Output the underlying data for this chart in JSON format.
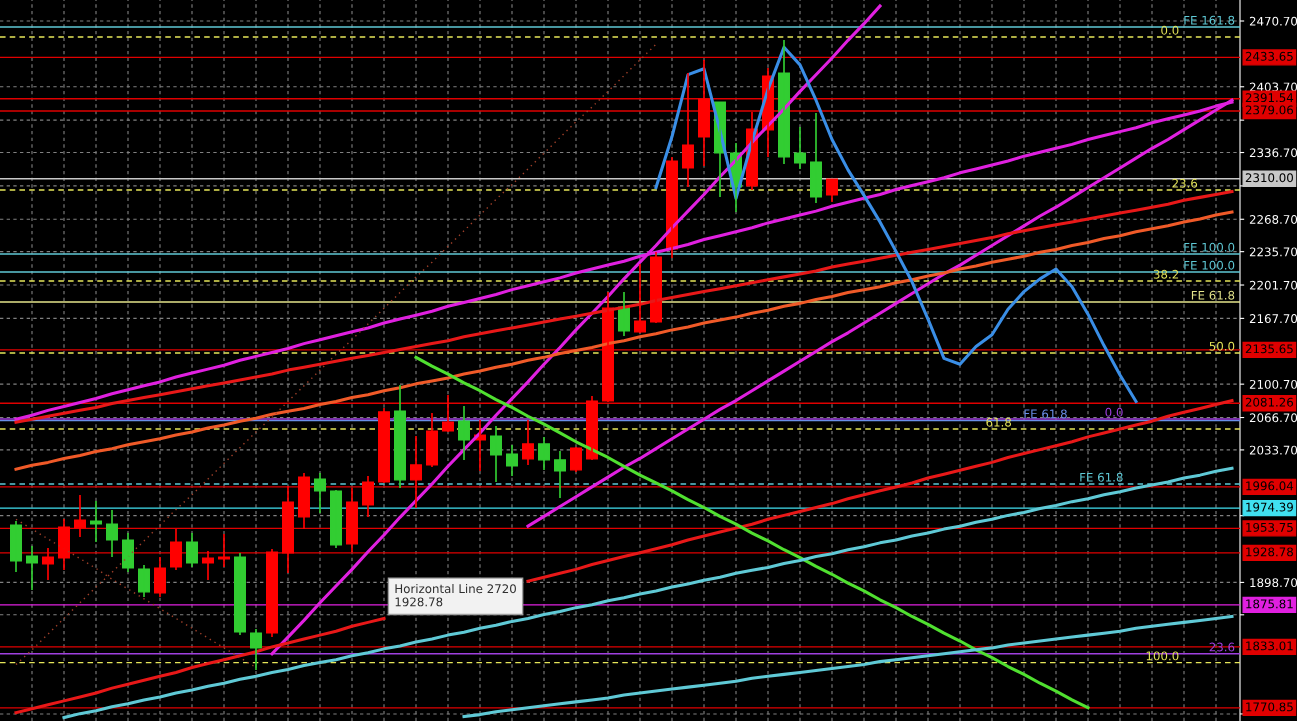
{
  "chart_data": {
    "type": "candlestick",
    "categories": [
      null,
      null,
      null,
      null,
      null,
      null,
      null,
      null,
      null,
      null,
      null,
      null,
      null,
      null,
      null,
      null,
      null,
      null,
      null,
      null,
      null,
      null,
      null,
      null,
      null,
      null,
      null,
      null,
      null,
      null,
      null,
      null,
      null,
      null,
      null,
      null,
      null,
      null,
      null,
      null,
      null,
      null,
      null,
      null,
      null,
      null,
      null,
      null,
      null,
      null,
      null,
      null,
      null,
      null,
      null,
      null,
      null,
      null,
      null,
      null,
      null,
      null,
      null,
      null,
      null,
      null,
      null,
      null,
      null,
      null,
      null,
      null,
      null,
      null,
      null,
      null,
      null
    ],
    "ohlc": [
      [
        1957.2,
        1961.3,
        1909.3,
        1920.6
      ],
      [
        1925.6,
        1935.8,
        1891.0,
        1918.5
      ],
      [
        1917.5,
        1933.8,
        1901.2,
        1924.6
      ],
      [
        1923.6,
        1963.3,
        1911.4,
        1955.2
      ],
      [
        1954.2,
        1987.8,
        1945.0,
        1962.3
      ],
      [
        1961.3,
        1981.7,
        1939.9,
        1958.2
      ],
      [
        1958.2,
        1972.5,
        1924.6,
        1941.9
      ],
      [
        1941.9,
        1949.1,
        1909.3,
        1913.4
      ],
      [
        1912.4,
        1916.5,
        1883.9,
        1889.0
      ],
      [
        1888.0,
        1924.6,
        1883.9,
        1913.4
      ],
      [
        1914.4,
        1953.2,
        1911.4,
        1939.9
      ],
      [
        1939.9,
        1949.1,
        1914.4,
        1918.5
      ],
      [
        1918.5,
        1930.7,
        1901.2,
        1923.6
      ],
      [
        1922.6,
        1948.1,
        1914.4,
        1924.6
      ],
      [
        1924.6,
        1928.7,
        1845.2,
        1848.2
      ],
      [
        1847.2,
        1851.3,
        1809.5,
        1831.9
      ],
      [
        1847.2,
        1932.8,
        1843.1,
        1929.7
      ],
      [
        1928.7,
        1997.0,
        1908.3,
        1980.7
      ],
      [
        1965.4,
        2010.2,
        1953.2,
        2006.1
      ],
      [
        2004.1,
        2010.2,
        1969.5,
        1991.9
      ],
      [
        1991.9,
        1992.9,
        1933.8,
        1936.9
      ],
      [
        1937.9,
        1994.9,
        1929.7,
        1980.7
      ],
      [
        1977.6,
        2007.2,
        1965.4,
        2001.0
      ],
      [
        2001.0,
        2076.4,
        2000.0,
        2072.4
      ],
      [
        2073.4,
        2099.9,
        1994.9,
        2003.1
      ],
      [
        2003.1,
        2047.9,
        1974.5,
        2018.4
      ],
      [
        2018.4,
        2071.3,
        2016.3,
        2053.0
      ],
      [
        2053.0,
        2089.7,
        2052.0,
        2062.2
      ],
      [
        2063.2,
        2078.5,
        2023.5,
        2043.8
      ],
      [
        2043.8,
        2064.2,
        2012.2,
        2048.9
      ],
      [
        2047.9,
        2058.1,
        2001.0,
        2028.5
      ],
      [
        2029.6,
        2038.7,
        2007.2,
        2017.3
      ],
      [
        2024.5,
        2064.2,
        2018.4,
        2039.8
      ],
      [
        2039.8,
        2046.9,
        2013.3,
        2023.5
      ],
      [
        2023.5,
        2032.6,
        1984.7,
        2012.2
      ],
      [
        2013.3,
        2036.7,
        2011.2,
        2035.7
      ],
      [
        2024.5,
        2088.7,
        2023.5,
        2083.6
      ],
      [
        2083.6,
        2194.6,
        2082.5,
        2178.3
      ],
      [
        2179.3,
        2194.6,
        2149.8,
        2154.9
      ],
      [
        2153.9,
        2223.1,
        2152.8,
        2165.1
      ],
      [
        2164.0,
        2235.4,
        2163.0,
        2230.3
      ],
      [
        2238.4,
        2332.2,
        2229.2,
        2328.1
      ],
      [
        2320.9,
        2417.7,
        2301.6,
        2344.4
      ],
      [
        2352.5,
        2431.0,
        2323.0,
        2391.2
      ],
      [
        2388.2,
        2388.2,
        2291.4,
        2336.2
      ],
      [
        2336.2,
        2346.4,
        2276.1,
        2301.6
      ],
      [
        2302.6,
        2378.0,
        2298.5,
        2360.7
      ],
      [
        2359.7,
        2422.8,
        2332.2,
        2414.7
      ],
      [
        2417.7,
        2451.3,
        2325.0,
        2332.2
      ],
      [
        2336.2,
        2362.7,
        2319.9,
        2326.0
      ],
      [
        2327.1,
        2377.0,
        2285.3,
        2291.4
      ],
      [
        2293.4,
        2309.7,
        2286.3,
        2309.7
      ],
      null,
      null,
      null,
      null,
      null,
      null,
      null,
      null,
      null,
      null,
      null,
      null,
      null,
      null,
      null,
      null,
      null,
      null,
      null,
      null,
      null,
      null,
      null,
      null,
      null
    ],
    "colors": [
      "#32cd32",
      "#32cd32",
      "#ff0000",
      "#ff0000",
      "#ff0000",
      "#32cd32",
      "#32cd32",
      "#32cd32",
      "#32cd32",
      "#ff0000",
      "#ff0000",
      "#32cd32",
      "#ff0000",
      "#ff0000",
      "#32cd32",
      "#32cd32",
      "#ff0000",
      "#ff0000",
      "#ff0000",
      "#32cd32",
      "#32cd32",
      "#ff0000",
      "#ff0000",
      "#ff0000",
      "#32cd32",
      "#ff0000",
      "#ff0000",
      "#ff0000",
      "#32cd32",
      "#ff0000",
      "#32cd32",
      "#32cd32",
      "#ff0000",
      "#32cd32",
      "#32cd32",
      "#ff0000",
      "#ff0000",
      "#ff0000",
      "#32cd32",
      "#ff0000",
      "#ff0000",
      "#ff0000",
      "#ff0000",
      "#ff0000",
      "#32cd32",
      "#32cd32",
      "#ff0000",
      "#ff0000",
      "#32cd32",
      "#32cd32",
      "#32cd32",
      "#ff0000",
      null,
      null,
      null,
      null,
      null,
      null,
      null,
      null,
      null,
      null,
      null,
      null,
      null,
      null,
      null,
      null,
      null,
      null,
      null,
      null,
      null,
      null,
      null,
      null,
      null
    ],
    "series": [
      {
        "type": "line",
        "color": "#e020e0",
        "line_style": "solid",
        "values": [
          2065,
          2069,
          2074,
          2078,
          2082,
          2086,
          2091,
          2095,
          2099,
          2103,
          2108,
          2112,
          2116,
          2120,
          2125,
          2129,
          2133,
          2137,
          2142,
          2146,
          2150,
          2154,
          2158,
          2163,
          2167,
          2171,
          2175,
          2180,
          2184,
          2188,
          2192,
          2197,
          2201,
          2205,
          2209,
          2214,
          2218,
          2222,
          2226,
          2231,
          2235,
          2239,
          2243,
          2248,
          2252,
          2256,
          2260,
          2265,
          2269,
          2273,
          2277,
          2282,
          2286,
          2290,
          2294,
          2299,
          2303,
          2307,
          2311,
          2316,
          2320,
          2324,
          2328,
          2333,
          2337,
          2341,
          2345,
          2350,
          2354,
          2358,
          2362,
          2367,
          2371,
          2375,
          2379,
          2384,
          2388
        ]
      },
      {
        "type": "line",
        "color": "#e020e0",
        "line_style": "solid",
        "values": [
          null,
          null,
          null,
          null,
          null,
          null,
          null,
          null,
          null,
          null,
          null,
          null,
          null,
          null,
          null,
          null,
          1826,
          1843,
          1860,
          1878,
          1895,
          1912,
          1930,
          1947,
          1965,
          1982,
          1999,
          2017,
          2034,
          2051,
          2069,
          2086,
          2103,
          2121,
          2138,
          2156,
          2173,
          2190,
          2208,
          2225,
          2242,
          2260,
          2277,
          2294,
          2312,
          2329,
          2347,
          2364,
          2381,
          2399,
          2416,
          2433,
          2451,
          2468,
          2486,
          null,
          null,
          null,
          null,
          null,
          null,
          null,
          null,
          null,
          null,
          null,
          null,
          null,
          null,
          null,
          null,
          null,
          null,
          null,
          null,
          null,
          null
        ]
      },
      {
        "type": "line",
        "color": "#e020e0",
        "line_style": "solid",
        "values": [
          null,
          null,
          null,
          null,
          null,
          null,
          null,
          null,
          null,
          null,
          null,
          null,
          null,
          null,
          null,
          null,
          null,
          null,
          null,
          null,
          null,
          null,
          null,
          null,
          null,
          null,
          null,
          null,
          null,
          null,
          null,
          null,
          1956,
          1966,
          1976,
          1986,
          1996,
          2006,
          2016,
          2025,
          2035,
          2045,
          2055,
          2065,
          2075,
          2084,
          2094,
          2104,
          2114,
          2124,
          2134,
          2144,
          2153,
          2163,
          2173,
          2183,
          2193,
          2203,
          2213,
          2222,
          2232,
          2242,
          2252,
          2262,
          2272,
          2281,
          2291,
          2301,
          2311,
          2321,
          2331,
          2341,
          2350,
          2360,
          2370,
          2380,
          2390
        ]
      },
      {
        "type": "line",
        "color": "#e81818",
        "line_style": "solid",
        "values": [
          2062,
          2065,
          2068,
          2071,
          2074,
          2077,
          2081,
          2084,
          2087,
          2090,
          2093,
          2096,
          2099,
          2102,
          2105,
          2108,
          2111,
          2115,
          2118,
          2121,
          2124,
          2127,
          2130,
          2133,
          2136,
          2139,
          2142,
          2145,
          2149,
          2152,
          2155,
          2158,
          2161,
          2164,
          2167,
          2170,
          2173,
          2176,
          2179,
          2182,
          2186,
          2189,
          2192,
          2195,
          2198,
          2201,
          2204,
          2207,
          2210,
          2213,
          2216,
          2220,
          2223,
          2226,
          2229,
          2232,
          2235,
          2238,
          2241,
          2244,
          2247,
          2250,
          2254,
          2257,
          2260,
          2263,
          2266,
          2269,
          2272,
          2275,
          2278,
          2281,
          2284,
          2288,
          2291,
          2294,
          2297
        ]
      },
      {
        "type": "line",
        "color": "#f05a28",
        "line_style": "solid",
        "values": [
          2014,
          2018,
          2021,
          2025,
          2028,
          2032,
          2035,
          2039,
          2042,
          2045,
          2049,
          2052,
          2056,
          2059,
          2063,
          2066,
          2070,
          2073,
          2076,
          2080,
          2083,
          2087,
          2090,
          2094,
          2097,
          2101,
          2104,
          2107,
          2111,
          2114,
          2118,
          2121,
          2125,
          2128,
          2132,
          2135,
          2138,
          2142,
          2145,
          2149,
          2152,
          2156,
          2159,
          2163,
          2166,
          2169,
          2173,
          2176,
          2180,
          2183,
          2187,
          2190,
          2194,
          2197,
          2200,
          2204,
          2207,
          2211,
          2214,
          2218,
          2221,
          2225,
          2228,
          2231,
          2235,
          2238,
          2242,
          2245,
          2249,
          2252,
          2256,
          2259,
          2262,
          2266,
          2269,
          2273,
          2276
        ]
      },
      {
        "type": "line",
        "color": "#e81818",
        "line_style": "solid",
        "values": [
          1766,
          1770,
          1774,
          1778,
          1782,
          1786,
          1791,
          1795,
          1799,
          1803,
          1807,
          1812,
          1816,
          1820,
          1824,
          1828,
          1833,
          1837,
          1841,
          1845,
          1849,
          1854,
          1858,
          1862,
          null,
          null,
          null,
          null,
          null,
          null,
          null,
          null,
          1900,
          1904,
          1908,
          1912,
          1917,
          1921,
          1925,
          1929,
          1933,
          1937,
          1942,
          1946,
          1950,
          1954,
          1958,
          1963,
          1967,
          1971,
          1975,
          1979,
          1984,
          1988,
          1992,
          1996,
          2000,
          2005,
          2009,
          2013,
          2017,
          2021,
          2026,
          2030,
          2034,
          2038,
          2042,
          2047,
          2051,
          2055,
          2059,
          2063,
          2068,
          2072,
          2076,
          2080,
          2084
        ]
      },
      {
        "type": "line",
        "color": "#50e030",
        "line_style": "solid",
        "values": [
          null,
          null,
          null,
          null,
          null,
          null,
          null,
          null,
          null,
          null,
          null,
          null,
          null,
          null,
          null,
          null,
          null,
          null,
          null,
          null,
          null,
          null,
          null,
          null,
          null,
          2128,
          2119,
          2111,
          2102,
          2094,
          2085,
          2077,
          2068,
          2060,
          2051,
          2042,
          2034,
          2026,
          2017,
          2008,
          2000,
          1992,
          1983,
          1975,
          1966,
          1958,
          1949,
          1941,
          1932,
          1924,
          1915,
          1907,
          1898,
          1890,
          1881,
          1873,
          1864,
          1856,
          1847,
          1839,
          1830,
          1822,
          1813,
          1805,
          1796,
          1788,
          1779,
          1771,
          null,
          null,
          null,
          null,
          null,
          null,
          null,
          null,
          null
        ]
      },
      {
        "type": "line",
        "color": "#5fc9d6",
        "line_style": "solid",
        "values": [
          null,
          null,
          null,
          1761,
          1765,
          1768,
          1772,
          1775,
          1779,
          1782,
          1786,
          1789,
          1793,
          1796,
          1800,
          1803,
          1807,
          1810,
          1814,
          1817,
          1820,
          1824,
          1827,
          1831,
          1834,
          1838,
          1841,
          1845,
          1848,
          1852,
          1855,
          1859,
          1862,
          1866,
          1869,
          1873,
          1876,
          1880,
          1883,
          1887,
          1890,
          1894,
          1897,
          1901,
          1904,
          1908,
          1911,
          1914,
          1918,
          1921,
          1925,
          1928,
          1932,
          1935,
          1939,
          1942,
          1946,
          1949,
          1953,
          1956,
          1960,
          1963,
          1967,
          1970,
          1974,
          1977,
          1981,
          1984,
          1988,
          1991,
          1995,
          1998,
          2001,
          2005,
          2008,
          2012,
          2015
        ]
      },
      {
        "type": "line",
        "color": "#5fc9d6",
        "line_style": "solid",
        "values": [
          null,
          null,
          null,
          null,
          null,
          null,
          null,
          null,
          null,
          null,
          null,
          null,
          null,
          null,
          null,
          null,
          null,
          null,
          null,
          null,
          null,
          null,
          null,
          null,
          null,
          null,
          null,
          null,
          1762,
          1764,
          1767,
          1769,
          1771,
          1773,
          1775,
          1777,
          1779,
          1781,
          1784,
          1786,
          1788,
          1790,
          1792,
          1794,
          1796,
          1798,
          1801,
          1803,
          1805,
          1807,
          1809,
          1811,
          1813,
          1815,
          1818,
          1820,
          1822,
          1824,
          1826,
          1828,
          1830,
          1832,
          1835,
          1837,
          1839,
          1841,
          1843,
          1845,
          1847,
          1849,
          1852,
          1854,
          1856,
          1858,
          1860,
          1862,
          1864
        ]
      },
      {
        "type": "line",
        "color": "#a0402a",
        "line_style": "dotted",
        "values": [
          1815,
          1830,
          1846,
          1862,
          1878,
          1894,
          1909,
          1925,
          1941,
          1957,
          1973,
          1988,
          2004,
          2020,
          2036,
          2052,
          2067,
          2083,
          2099,
          2115,
          2131,
          2146,
          2162,
          2178,
          2194,
          2210,
          2225,
          2241,
          2257,
          2273,
          2289,
          2304,
          2320,
          2336,
          2352,
          2368,
          2383,
          2399,
          2415,
          2431,
          2447,
          null,
          null,
          null,
          null,
          null,
          null,
          null,
          null,
          null,
          null,
          null,
          null,
          null,
          null,
          null,
          null,
          null,
          null,
          null,
          null,
          null,
          null,
          null,
          null,
          null,
          null,
          null,
          null,
          null,
          null,
          null,
          null,
          null,
          null,
          null,
          null
        ]
      },
      {
        "type": "line",
        "color": "#a0402a",
        "line_style": "dotted",
        "values": [
          1963,
          1953,
          1943,
          1933,
          1923,
          1913,
          1902,
          1892,
          1882,
          1872,
          1862,
          1852,
          1842,
          1832,
          1822,
          1812,
          null,
          null,
          null,
          null,
          null,
          null,
          null,
          null,
          null,
          null,
          null,
          null,
          null,
          null,
          null,
          null,
          null,
          null,
          null,
          null,
          null,
          null,
          null,
          null,
          null,
          null,
          null,
          null,
          null,
          null,
          null,
          null,
          null,
          null,
          null,
          null,
          null,
          null,
          null,
          null,
          null,
          null,
          null,
          null,
          null,
          null,
          null,
          null,
          null,
          null,
          null,
          null,
          null,
          null,
          null,
          null,
          null,
          null,
          null,
          null,
          null
        ]
      },
      {
        "type": "line",
        "color": "#3a8ee6",
        "line_style": "solid",
        "values": [
          null,
          null,
          null,
          null,
          null,
          null,
          null,
          null,
          null,
          null,
          null,
          null,
          null,
          null,
          null,
          null,
          null,
          null,
          null,
          null,
          null,
          null,
          null,
          null,
          null,
          null,
          null,
          null,
          null,
          null,
          null,
          null,
          null,
          null,
          null,
          null,
          null,
          null,
          null,
          null,
          2301,
          2353,
          2416,
          2422,
          2359,
          2290,
          2348,
          2401,
          2444,
          2426,
          2390,
          2350,
          2319,
          2293,
          2266,
          2236,
          2205,
          2167,
          2127,
          2121,
          2139,
          2151,
          2177,
          2195,
          2208,
          2218,
          2200,
          2172,
          2140,
          2110,
          2083,
          null,
          null,
          null,
          null,
          null,
          null
        ]
      }
    ],
    "ref_lines": [
      {
        "axis": "y",
        "value": 2464.6,
        "color": "#5fc9d6",
        "line_style": "solid"
      },
      {
        "axis": "y",
        "value": 2454.4,
        "color": "#e6e65a",
        "line_style": "dashed"
      },
      {
        "axis": "y",
        "value": 2433.65,
        "label": "2433.65",
        "color": "#e00000",
        "line_style": "solid"
      },
      {
        "axis": "y",
        "value": 2391.54,
        "label": "2391.54",
        "color": "#e00000",
        "line_style": "solid"
      },
      {
        "axis": "y",
        "value": 2379.06,
        "label": "2379.06",
        "color": "#e00000",
        "line_style": "solid"
      },
      {
        "axis": "y",
        "value": 2310.0,
        "label": "2310.00",
        "color": "#c8c8c8",
        "line_style": "solid"
      },
      {
        "axis": "y",
        "value": 2298.5,
        "color": "#e6e65a",
        "line_style": "dashed"
      },
      {
        "axis": "y",
        "value": 2233.3,
        "color": "#5fc9d6",
        "line_style": "solid"
      },
      {
        "axis": "y",
        "value": 2215.0,
        "color": "#5fc9d6",
        "line_style": "solid"
      },
      {
        "axis": "y",
        "value": 2205.8,
        "color": "#e6e65a",
        "line_style": "dashed"
      },
      {
        "axis": "y",
        "value": 2184.4,
        "color": "#e6e68c",
        "line_style": "solid"
      },
      {
        "axis": "y",
        "value": 2135.65,
        "label": "2135.65",
        "color": "#e00000",
        "line_style": "solid"
      },
      {
        "axis": "y",
        "value": 2132.5,
        "color": "#e6e65a",
        "line_style": "dashed"
      },
      {
        "axis": "y",
        "value": 2081.26,
        "label": "2081.26",
        "color": "#e00000",
        "line_style": "solid"
      },
      {
        "axis": "y",
        "value": 2065.2,
        "color": "#a040e0",
        "line_style": "solid"
      },
      {
        "axis": "y",
        "value": 2063.5,
        "color": "#6a8fe8",
        "line_style": "solid"
      },
      {
        "axis": "y",
        "value": 2055.0,
        "color": "#e6e65a",
        "line_style": "dashed"
      },
      {
        "axis": "y",
        "value": 1999.0,
        "color": "#5fc9d6",
        "line_style": "dashed"
      },
      {
        "axis": "y",
        "value": 1996.04,
        "label": "1996.04",
        "color": "#e00000",
        "line_style": "solid"
      },
      {
        "axis": "y",
        "value": 1974.39,
        "label": "1974.39",
        "color": "#40e0f0",
        "line_style": "solid"
      },
      {
        "axis": "y",
        "value": 1953.75,
        "label": "1953.75",
        "color": "#e00000",
        "line_style": "solid"
      },
      {
        "axis": "y",
        "value": 1928.78,
        "label": "1928.78",
        "color": "#e00000",
        "line_style": "solid"
      },
      {
        "axis": "y",
        "value": 1875.81,
        "label": "1875.81",
        "color": "#e020e0",
        "line_style": "solid"
      },
      {
        "axis": "y",
        "value": 1833.01,
        "label": "1833.01",
        "color": "#e00000",
        "line_style": "solid"
      },
      {
        "axis": "y",
        "value": 1826.0,
        "color": "#a040e0",
        "line_style": "solid"
      },
      {
        "axis": "y",
        "value": 1817.0,
        "color": "#e6e65a",
        "line_style": "dashed"
      },
      {
        "axis": "y",
        "value": 1770.85,
        "label": "1770.85",
        "color": "#e00000",
        "line_style": "solid"
      }
    ],
    "annotations": [
      {
        "text": "FE 161.8",
        "y": 2464.6
      },
      {
        "text": "0.0",
        "y": 2454.4
      },
      {
        "text": "23.6",
        "y": 2298.5
      },
      {
        "text": "FE 100.0",
        "y": 2233.3
      },
      {
        "text": "FE 100.0",
        "y": 2215.0
      },
      {
        "text": "38.2",
        "y": 2205.8
      },
      {
        "text": "FE 61.8",
        "y": 2184.4
      },
      {
        "text": "50.0",
        "y": 2132.5
      },
      {
        "text": "0.0",
        "y": 2065.2
      },
      {
        "text": "FE 61.8",
        "y": 2063.5
      },
      {
        "text": "61.8",
        "y": 2055.0
      },
      {
        "text": "FE 61.8",
        "y": 1999.0
      },
      {
        "text": "23.6",
        "y": 1826.0
      },
      {
        "text": "100.0",
        "y": 1817.0
      },
      "Horizontal Line 2720\n1928.78"
    ],
    "ylim": [
      1757.5,
      2492.1
    ],
    "yticks": [
      {
        "value": 1764.7,
        "label": null
      },
      {
        "value": 1865.7,
        "label": null
      },
      {
        "value": 1898.7,
        "label": "1898.70"
      },
      {
        "value": 1966.7,
        "label": null
      },
      {
        "value": 2033.7,
        "label": "2033.70"
      },
      {
        "value": 2066.7,
        "label": "2066.70"
      },
      {
        "value": 2100.7,
        "label": "2100.70"
      },
      {
        "value": 2167.7,
        "label": "2167.70"
      },
      {
        "value": 2201.7,
        "label": "2201.70"
      },
      {
        "value": 2235.7,
        "label": "2235.70"
      },
      {
        "value": 2268.7,
        "label": "2268.70"
      },
      {
        "value": 2302.7,
        "label": null
      },
      {
        "value": 2336.7,
        "label": "2336.70"
      },
      {
        "value": 2369.7,
        "label": null
      },
      {
        "value": 2403.7,
        "label": "2403.70"
      },
      {
        "value": 2470.7,
        "label": "2470.70"
      }
    ],
    "grid": true,
    "tick_labels": "y"
  }
}
